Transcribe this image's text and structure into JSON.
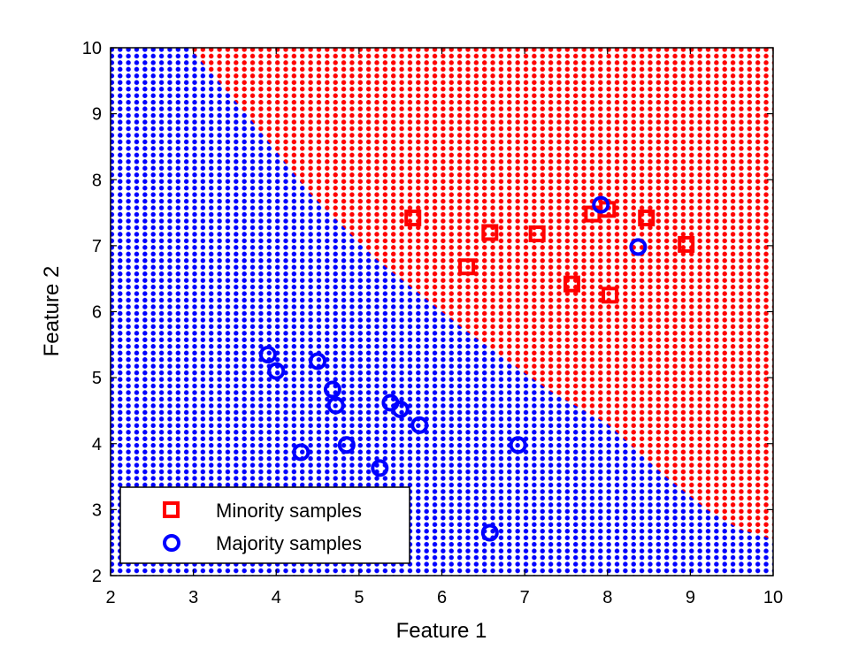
{
  "chart_data": {
    "type": "scatter",
    "title": "",
    "xlabel": "Feature 1",
    "ylabel": "Feature 2",
    "xlim": [
      2,
      10
    ],
    "ylim": [
      2,
      10
    ],
    "xticks": [
      "2",
      "3",
      "4",
      "5",
      "6",
      "7",
      "8",
      "9",
      "10"
    ],
    "yticks": [
      "2",
      "3",
      "4",
      "5",
      "6",
      "7",
      "8",
      "9",
      "10"
    ],
    "grid": false,
    "legend_position": "bottom-left",
    "background_regions": {
      "grid_step": 0.1,
      "colors": {
        "Minority": "#ff0000",
        "Majority": "#0000ff"
      },
      "boundary": [
        [
          2.95,
          10
        ],
        [
          3.3,
          9.5
        ],
        [
          3.7,
          8.9
        ],
        [
          4.4,
          7.8
        ],
        [
          5.2,
          6.8
        ],
        [
          6.3,
          5.7
        ],
        [
          7.3,
          4.8
        ],
        [
          8.0,
          4.3
        ],
        [
          8.7,
          3.5
        ],
        [
          9.2,
          3.0
        ],
        [
          9.6,
          2.7
        ],
        [
          10,
          2.55
        ]
      ]
    },
    "series": [
      {
        "name": "Minority samples",
        "marker": "square",
        "color": "#ff0000",
        "points": [
          [
            5.65,
            7.42
          ],
          [
            6.58,
            7.2
          ],
          [
            7.15,
            7.18
          ],
          [
            6.3,
            6.68
          ],
          [
            7.57,
            6.42
          ],
          [
            7.82,
            7.48
          ],
          [
            8.0,
            7.55
          ],
          [
            8.47,
            7.42
          ],
          [
            8.95,
            7.02
          ],
          [
            8.03,
            6.25
          ]
        ]
      },
      {
        "name": "Majority samples",
        "marker": "circle",
        "color": "#0000ff",
        "points": [
          [
            3.9,
            5.35
          ],
          [
            4.0,
            5.1
          ],
          [
            4.5,
            5.25
          ],
          [
            4.68,
            4.82
          ],
          [
            4.72,
            4.58
          ],
          [
            5.38,
            4.62
          ],
          [
            5.5,
            4.52
          ],
          [
            5.73,
            4.28
          ],
          [
            4.3,
            3.87
          ],
          [
            4.85,
            3.98
          ],
          [
            5.25,
            3.63
          ],
          [
            6.92,
            3.98
          ],
          [
            6.58,
            2.65
          ],
          [
            7.92,
            7.62
          ],
          [
            8.37,
            6.98
          ]
        ]
      }
    ]
  }
}
